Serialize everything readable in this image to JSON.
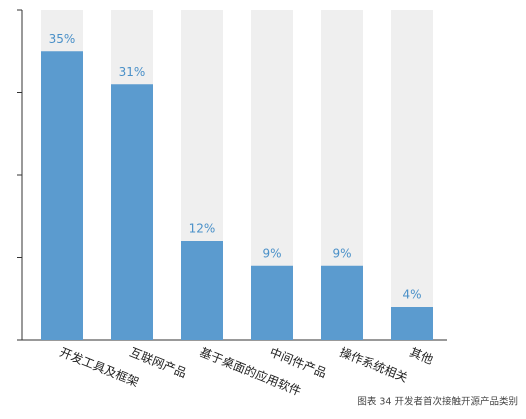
{
  "chart_data": {
    "type": "bar",
    "categories": [
      "开发工具及框架",
      "互联网产品",
      "基于桌面的应用软件",
      "中间件产品",
      "操作系统相关",
      "其他"
    ],
    "values": [
      35,
      31,
      12,
      9,
      9,
      4
    ],
    "value_labels": [
      "35%",
      "31%",
      "12%",
      "9%",
      "9%",
      "4%"
    ],
    "color": "#5b9bcf",
    "ylim": [
      0,
      40
    ],
    "yticks": [
      0,
      10,
      20,
      30,
      40
    ],
    "caption": "图表 34  开发者首次接触开源产品类别"
  }
}
